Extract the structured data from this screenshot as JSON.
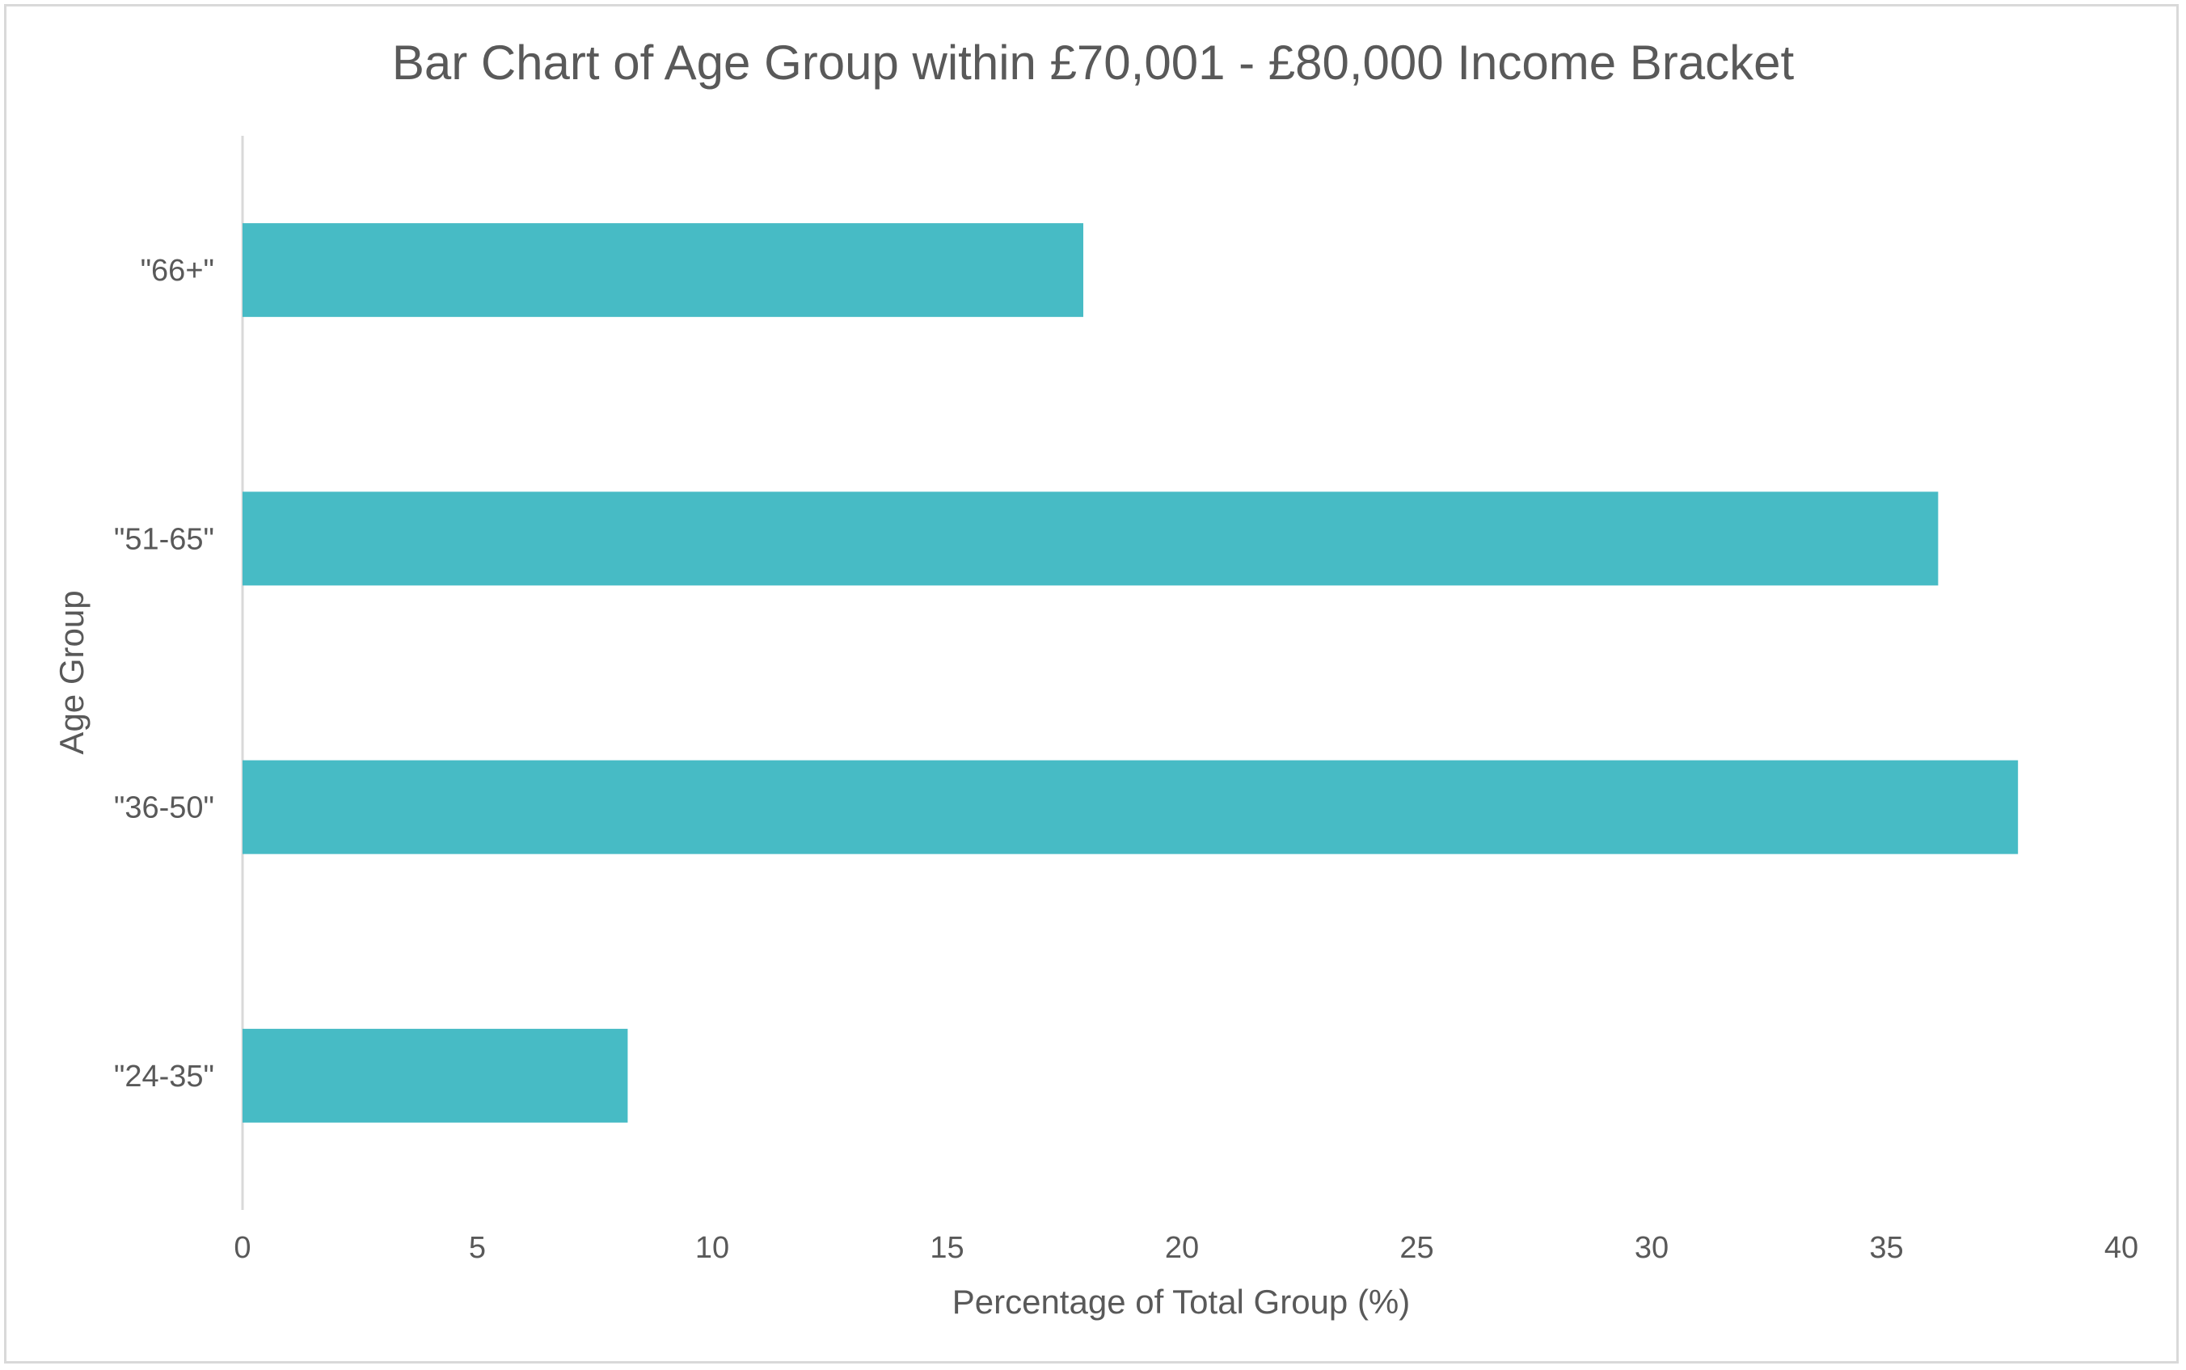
{
  "chart_data": {
    "type": "bar",
    "orientation": "horizontal",
    "title": "Bar Chart of Age Group within £70,001 - £80,000 Income Bracket",
    "xlabel": "Percentage of Total Group (%)",
    "ylabel": "Age Group",
    "categories": [
      "\"24-35\"",
      "\"36-50\"",
      "\"51-65\"",
      "\"66+\""
    ],
    "values": [
      8.2,
      37.8,
      36.1,
      17.9
    ],
    "xlim": [
      0,
      40
    ],
    "xticks": [
      "0",
      "5",
      "10",
      "15",
      "20",
      "25",
      "30",
      "35",
      "40"
    ],
    "grid": false,
    "legend": "none",
    "bar_color": "#47BBC5"
  }
}
